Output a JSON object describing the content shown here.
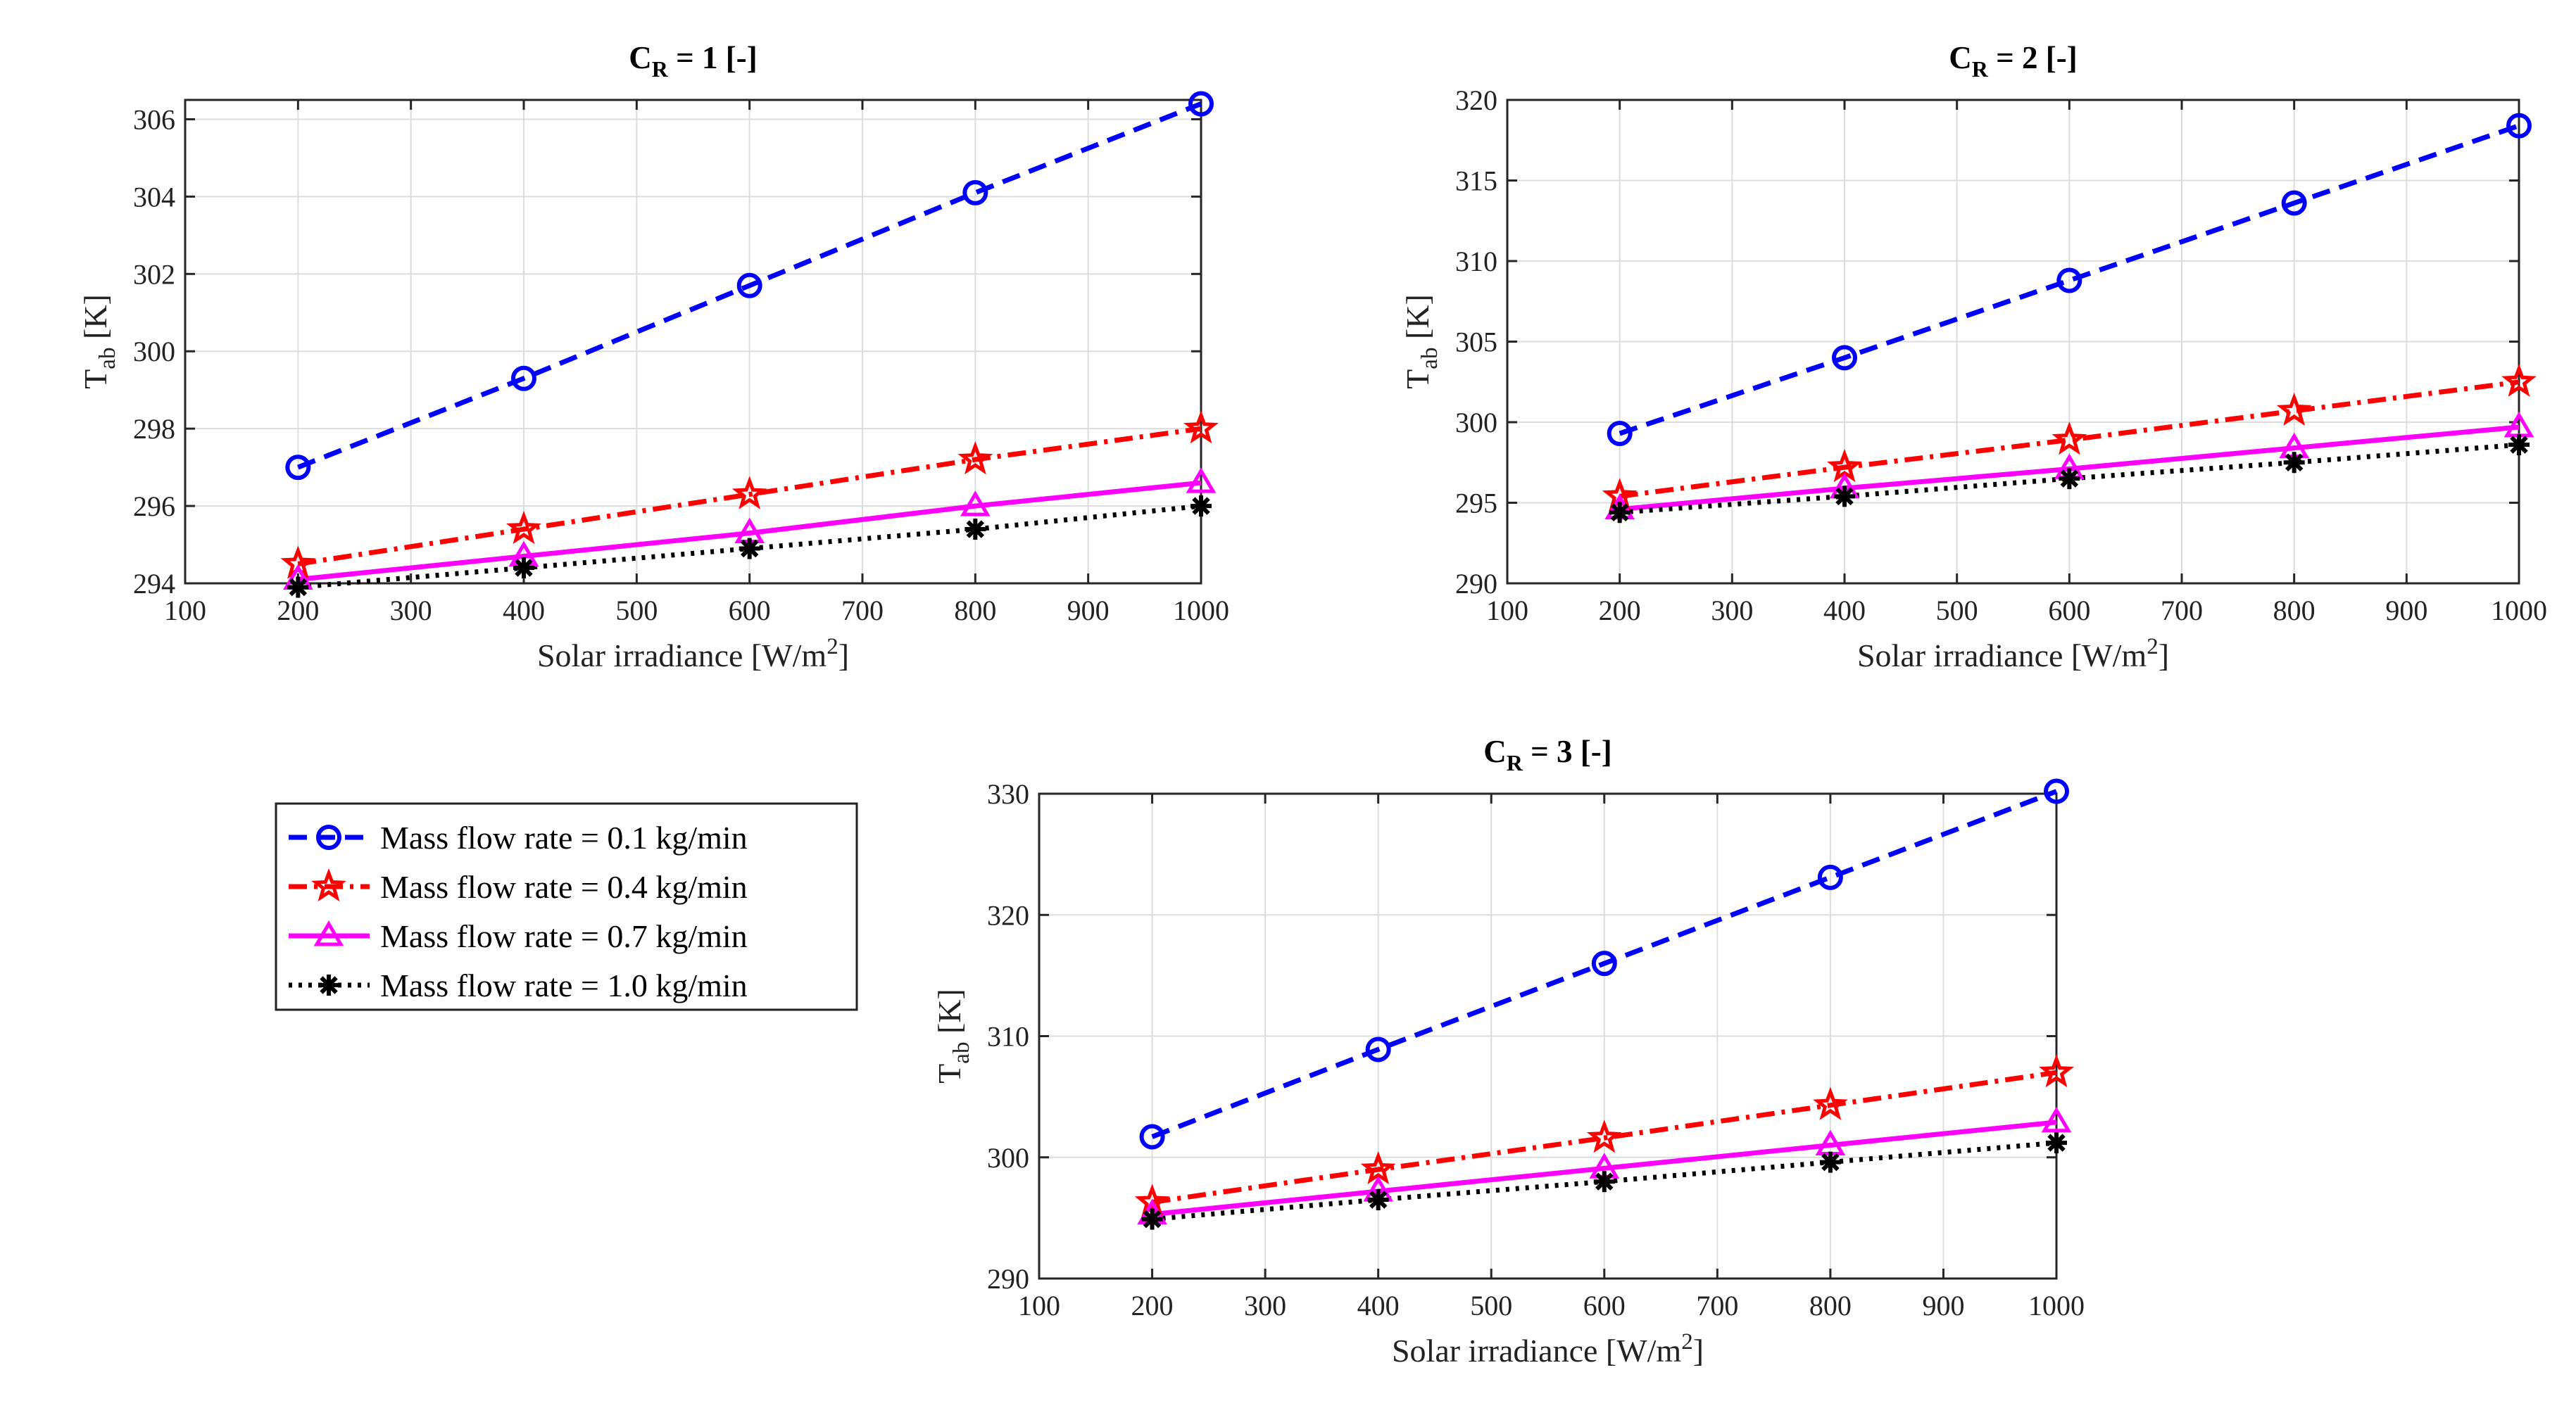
{
  "legend": {
    "entries": [
      "Mass flow rate = 0.1 kg/min",
      "Mass flow rate = 0.4 kg/min",
      "Mass flow rate = 0.7 kg/min",
      "Mass flow rate = 1.0 kg/min"
    ]
  },
  "styles": [
    {
      "color": "#0000ff",
      "dash": "dashed",
      "marker": "circle"
    },
    {
      "color": "#ff0000",
      "dash": "dashdot",
      "marker": "star"
    },
    {
      "color": "#ff00ff",
      "dash": "solid",
      "marker": "triangle"
    },
    {
      "color": "#000000",
      "dash": "dotted",
      "marker": "asterisk"
    }
  ],
  "chart_data": [
    {
      "type": "line",
      "title": {
        "main": "C",
        "sub": "R",
        "rest": " = 1 [-]"
      },
      "xlabel": {
        "main": "Solar irradiance [W/m",
        "sup": "2",
        "close": "]"
      },
      "ylabel": {
        "main": "T",
        "sub": "ab",
        "rest": " [K]"
      },
      "xlim": [
        100,
        1000
      ],
      "ylim": [
        294,
        306.5
      ],
      "xticks": [
        100,
        200,
        300,
        400,
        500,
        600,
        700,
        800,
        900,
        1000
      ],
      "yticks": [
        294,
        296,
        298,
        300,
        302,
        304,
        306
      ],
      "grid": true,
      "x": [
        200,
        400,
        600,
        800,
        1000
      ],
      "series": [
        {
          "name": "Mass flow rate = 0.1 kg/min",
          "values": [
            297.0,
            299.3,
            301.7,
            304.1,
            306.4
          ]
        },
        {
          "name": "Mass flow rate = 0.4 kg/min",
          "values": [
            294.5,
            295.4,
            296.3,
            297.2,
            298.0
          ]
        },
        {
          "name": "Mass flow rate = 0.7 kg/min",
          "values": [
            294.1,
            294.7,
            295.3,
            296.0,
            296.6
          ]
        },
        {
          "name": "Mass flow rate = 1.0 kg/min",
          "values": [
            293.9,
            294.4,
            294.9,
            295.4,
            296.0
          ]
        }
      ]
    },
    {
      "type": "line",
      "title": {
        "main": "C",
        "sub": "R",
        "rest": " = 2 [-]"
      },
      "xlabel": {
        "main": "Solar irradiance [W/m",
        "sup": "2",
        "close": "]"
      },
      "ylabel": {
        "main": "T",
        "sub": "ab",
        "rest": " [K]"
      },
      "xlim": [
        100,
        1000
      ],
      "ylim": [
        290,
        320
      ],
      "xticks": [
        100,
        200,
        300,
        400,
        500,
        600,
        700,
        800,
        900,
        1000
      ],
      "yticks": [
        290,
        295,
        300,
        305,
        310,
        315,
        320
      ],
      "grid": true,
      "x": [
        200,
        400,
        600,
        800,
        1000
      ],
      "series": [
        {
          "name": "Mass flow rate = 0.1 kg/min",
          "values": [
            299.3,
            304.0,
            308.8,
            313.6,
            318.4
          ]
        },
        {
          "name": "Mass flow rate = 0.4 kg/min",
          "values": [
            295.4,
            297.2,
            298.9,
            300.7,
            302.5
          ]
        },
        {
          "name": "Mass flow rate = 0.7 kg/min",
          "values": [
            294.6,
            295.9,
            297.1,
            298.4,
            299.7
          ]
        },
        {
          "name": "Mass flow rate = 1.0 kg/min",
          "values": [
            294.4,
            295.4,
            296.5,
            297.5,
            298.6
          ]
        }
      ]
    },
    {
      "type": "line",
      "title": {
        "main": "C",
        "sub": "R",
        "rest": " = 3 [-]"
      },
      "xlabel": {
        "main": "Solar irradiance [W/m",
        "sup": "2",
        "close": "]"
      },
      "ylabel": {
        "main": "T",
        "sub": "ab",
        "rest": " [K]"
      },
      "xlim": [
        100,
        1000
      ],
      "ylim": [
        290,
        330
      ],
      "xticks": [
        100,
        200,
        300,
        400,
        500,
        600,
        700,
        800,
        900,
        1000
      ],
      "yticks": [
        290,
        300,
        310,
        320,
        330
      ],
      "grid": true,
      "x": [
        200,
        400,
        600,
        800,
        1000
      ],
      "series": [
        {
          "name": "Mass flow rate = 0.1 kg/min",
          "values": [
            301.7,
            308.9,
            316.0,
            323.1,
            330.2
          ]
        },
        {
          "name": "Mass flow rate = 0.4 kg/min",
          "values": [
            296.3,
            299.0,
            301.6,
            304.3,
            307.0
          ]
        },
        {
          "name": "Mass flow rate = 0.7 kg/min",
          "values": [
            295.3,
            297.2,
            299.1,
            301.0,
            302.9
          ]
        },
        {
          "name": "Mass flow rate = 1.0 kg/min",
          "values": [
            294.9,
            296.5,
            298.0,
            299.6,
            301.2
          ]
        }
      ]
    }
  ]
}
